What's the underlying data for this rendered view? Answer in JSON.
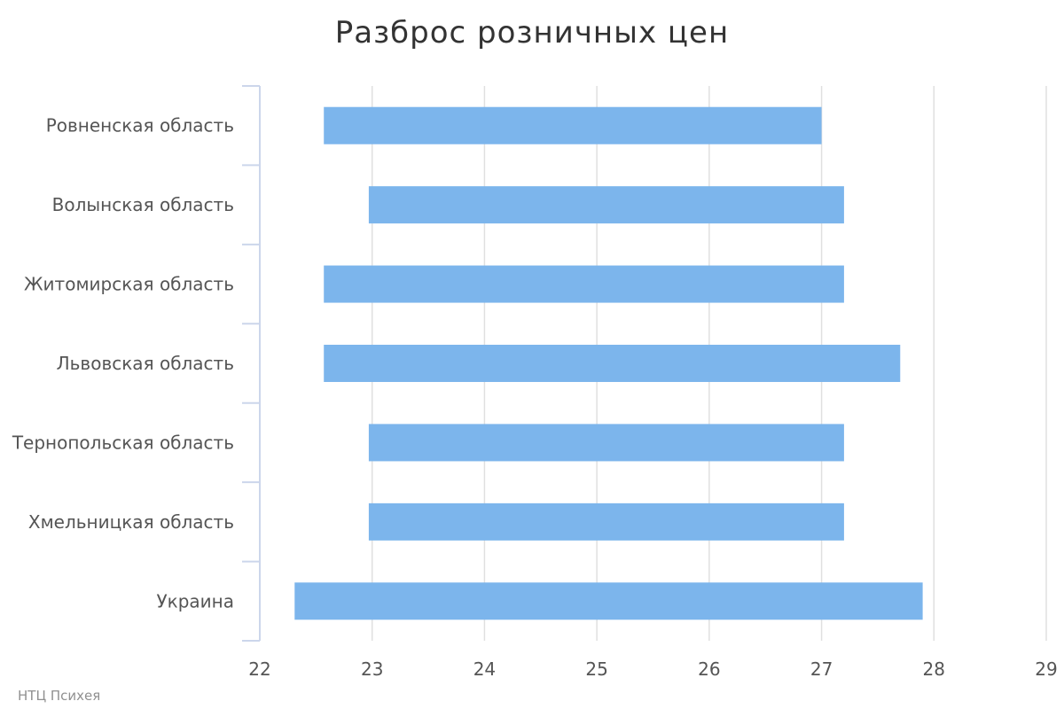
{
  "chart_data": {
    "type": "bar",
    "orientation": "horizontal",
    "subtype": "range",
    "title": "Разброс розничных цен",
    "credit": "НТЦ Психея",
    "categories": [
      "Ровненская область",
      "Волынская область",
      "Житомирская область",
      "Львовская область",
      "Тернопольская область",
      "Хмельницкая область",
      "Украина"
    ],
    "ranges": [
      [
        22.57,
        27.0
      ],
      [
        22.97,
        27.2
      ],
      [
        22.57,
        27.2
      ],
      [
        22.57,
        27.7
      ],
      [
        22.97,
        27.2
      ],
      [
        22.97,
        27.2
      ],
      [
        22.31,
        27.9
      ]
    ],
    "xlim": [
      22,
      29
    ],
    "xticks": [
      22,
      23,
      24,
      25,
      26,
      27,
      28,
      29
    ],
    "grid": true,
    "legend": "none",
    "bar_color": "#7cb5ec"
  }
}
